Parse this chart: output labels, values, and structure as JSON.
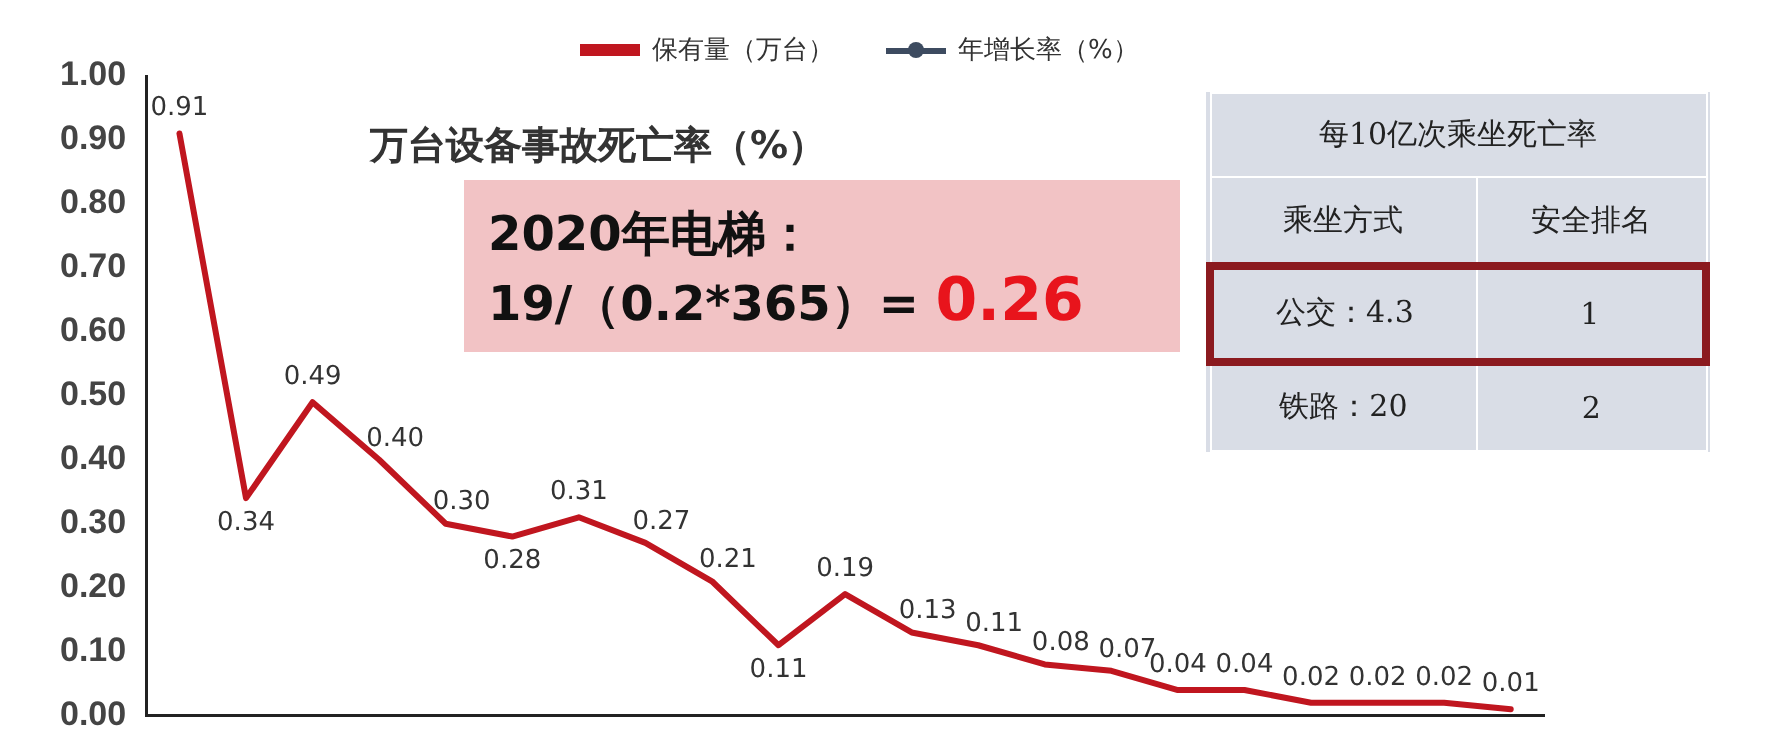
{
  "chart_data": {
    "type": "line",
    "categories": [
      null,
      null,
      null,
      null,
      null,
      null,
      null,
      null,
      null,
      null,
      null,
      null,
      null,
      null,
      null,
      null,
      null,
      null,
      null,
      null,
      null
    ],
    "series": [
      {
        "name": "保有量（万台）",
        "color": "#c0161f",
        "values": [
          0.91,
          0.34,
          0.49,
          0.4,
          0.3,
          0.28,
          0.31,
          0.27,
          0.21,
          0.11,
          0.19,
          0.13,
          0.11,
          0.08,
          0.07,
          0.04,
          0.04,
          0.02,
          0.02,
          0.02,
          0.01
        ],
        "value_labels": [
          "0.91",
          "0.34",
          "0.49",
          "0.40",
          "0.30",
          "0.28",
          "0.31",
          "0.27",
          "0.21",
          "0.11",
          "0.19",
          "0.13",
          "0.11",
          "0.08",
          "0.07",
          "0.04",
          "0.04",
          "0.02",
          "0.02",
          "0.02",
          "0.01"
        ]
      },
      {
        "name": "年增长率（%）",
        "color": "#3d4b60",
        "values": [
          null,
          null,
          null,
          null,
          null,
          null,
          null,
          null,
          null,
          null,
          null,
          null,
          null,
          null,
          null,
          null,
          null,
          null,
          null,
          null,
          null
        ]
      }
    ],
    "ylim": [
      0,
      1
    ],
    "yticks": [
      {
        "value": 0,
        "label": "0.00"
      },
      {
        "value": 0.1,
        "label": "0.10"
      },
      {
        "value": 0.2,
        "label": "0.20"
      },
      {
        "value": 0.3,
        "label": "0.30"
      },
      {
        "value": 0.4,
        "label": "0.40"
      },
      {
        "value": 0.5,
        "label": "0.50"
      },
      {
        "value": 0.6,
        "label": "0.60"
      },
      {
        "value": 0.7,
        "label": "0.70"
      },
      {
        "value": 0.8,
        "label": "0.80"
      },
      {
        "value": 0.9,
        "label": "0.90"
      },
      {
        "value": 1,
        "label": "1.00"
      }
    ],
    "grid": false,
    "legend": "top",
    "marker": "none",
    "line_style": "solid",
    "tick_labels": "y",
    "annotations": [
      "万台设备事故死亡率（%）",
      "2020年电梯：",
      "19/（0.2*365）=",
      "0.26",
      "每10亿次乘坐死亡率",
      "乘坐方式",
      "安全排名",
      "公交：4.3",
      "1",
      "铁路：20",
      "2"
    ]
  }
}
